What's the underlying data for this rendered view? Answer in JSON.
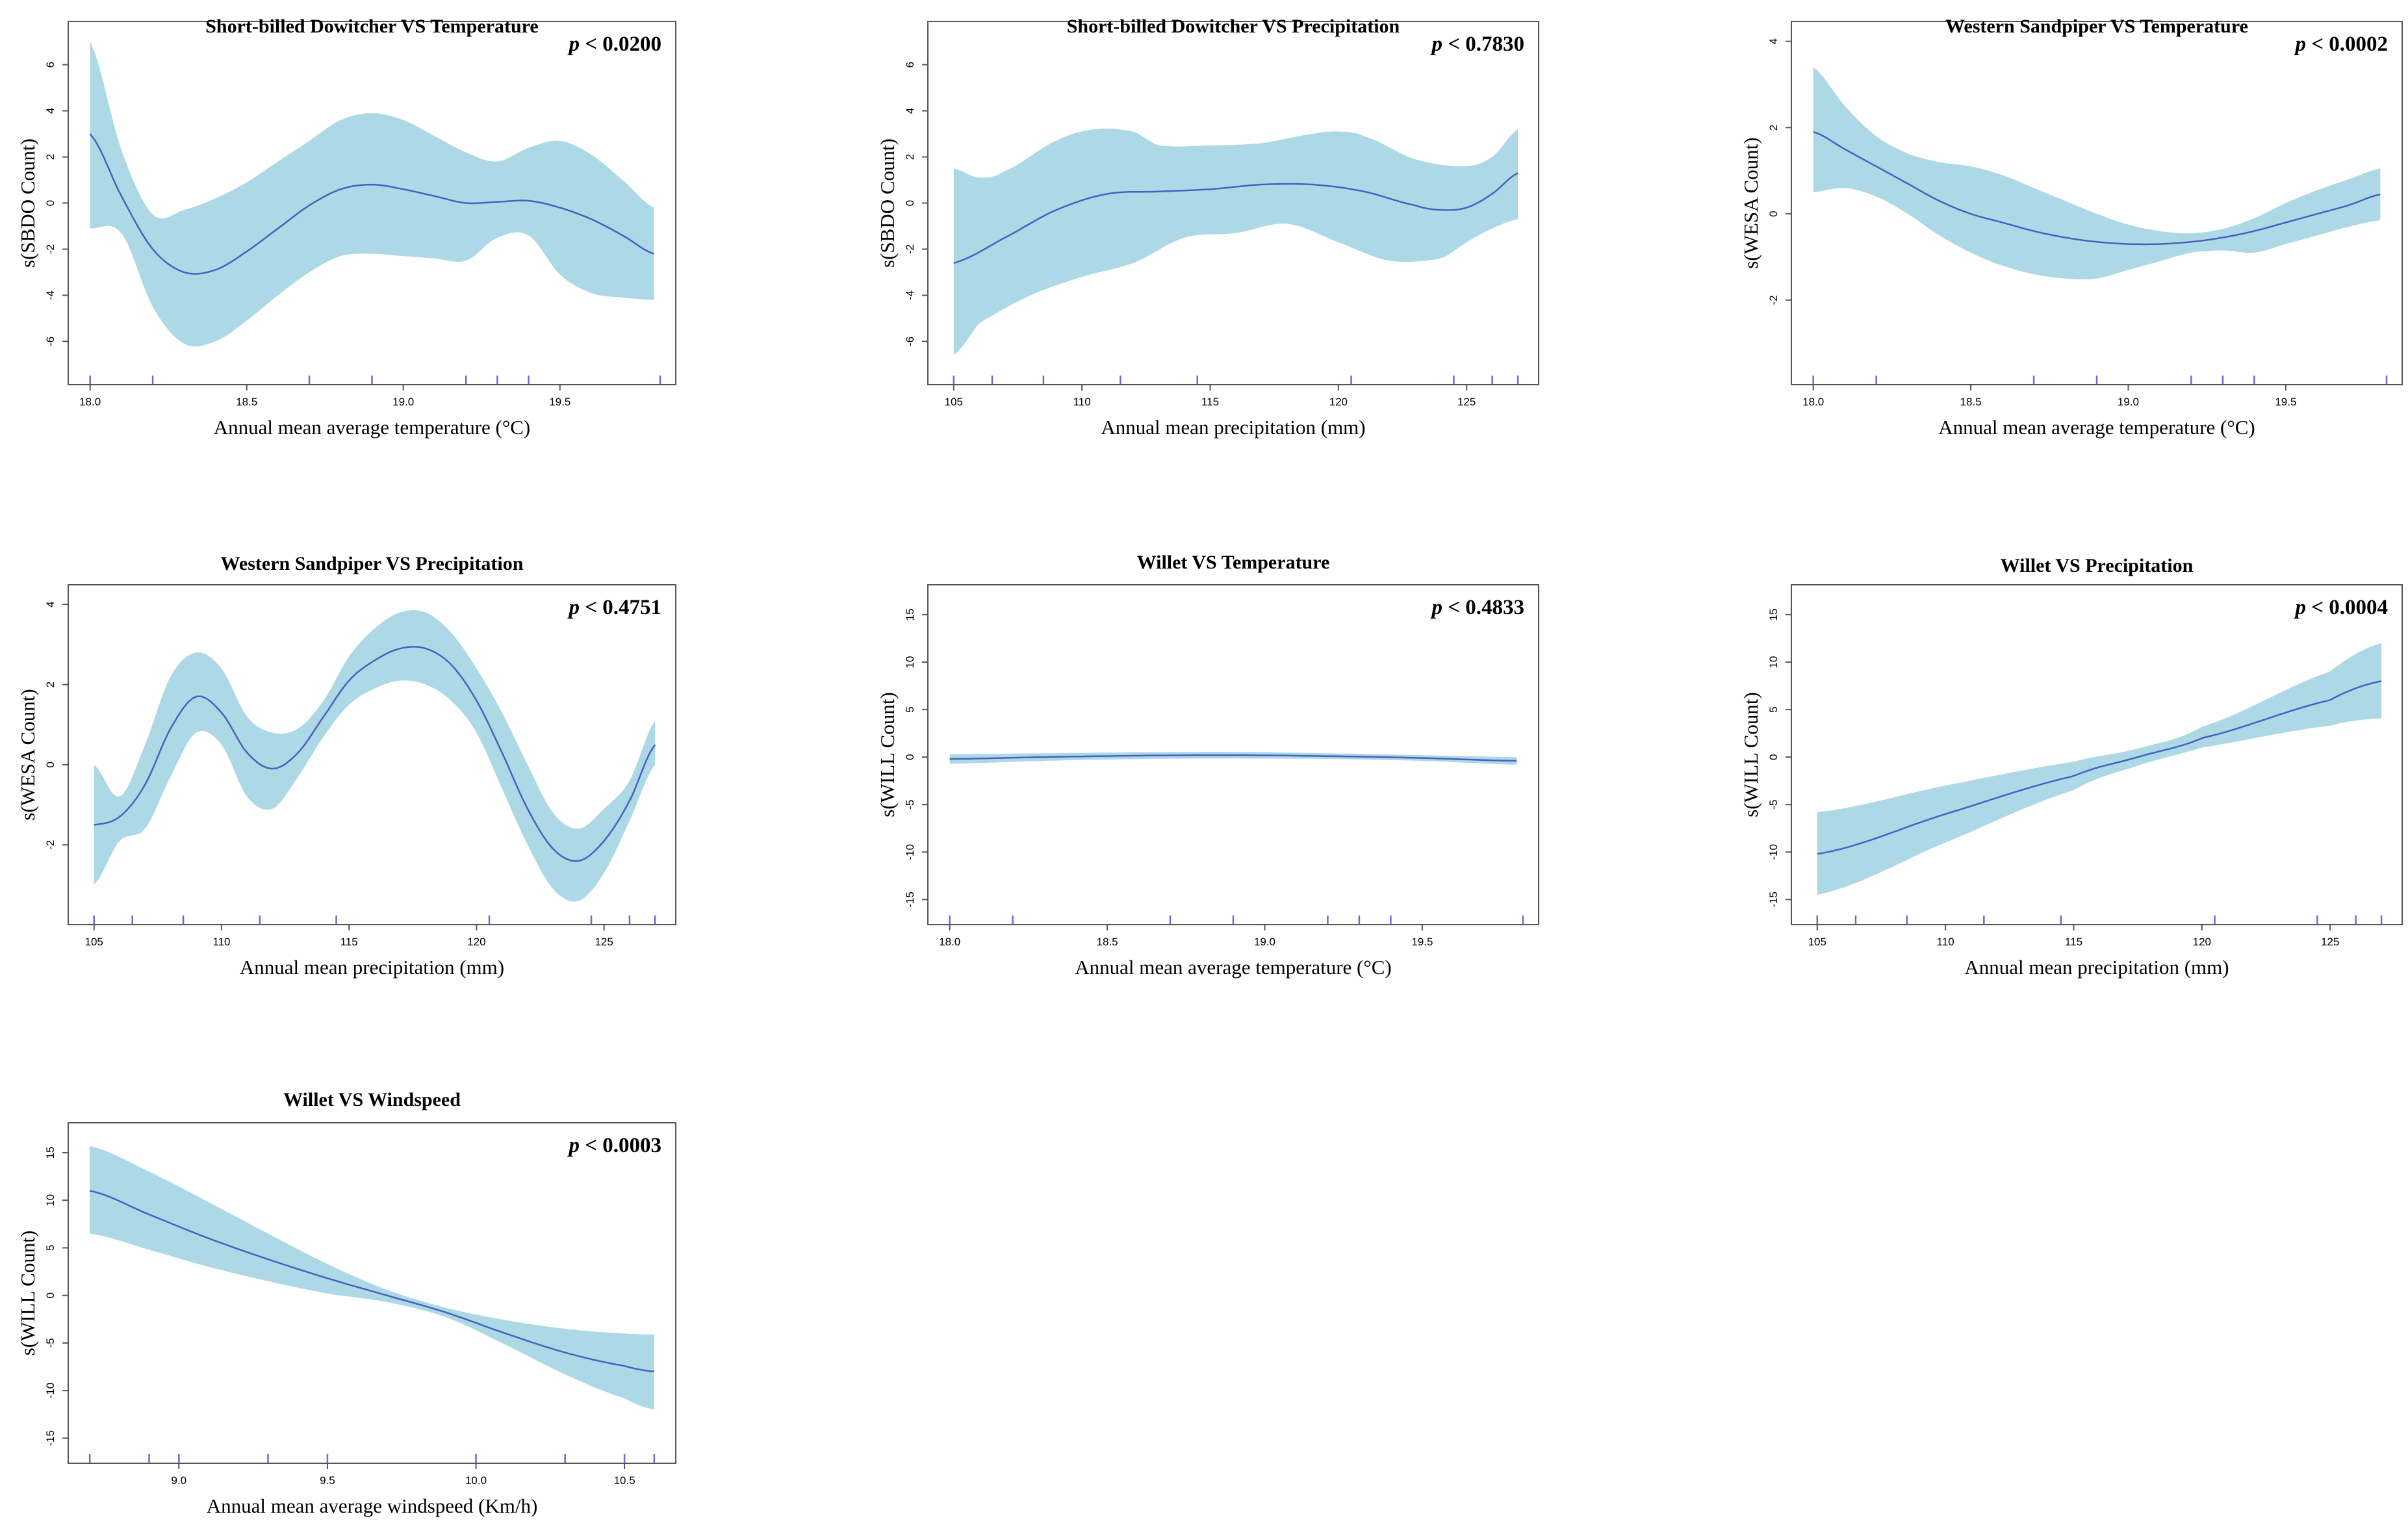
{
  "chart_data": [
    {
      "type": "line",
      "title": "Short-billed Dowitcher VS Temperature",
      "p_value": "p < 0.0200",
      "xlabel": "Annual mean average temperature (°C)",
      "ylabel": "s(SBDO Count)",
      "xlim": [
        17.98,
        19.82
      ],
      "ylim": [
        -7.2,
        7.2
      ],
      "xticks": [
        18.0,
        18.5,
        19.0,
        19.5
      ],
      "xtick_labels": [
        "18.0",
        "18.5",
        "19.0",
        "19.5"
      ],
      "yticks": [
        -6,
        -4,
        -2,
        0,
        2,
        4,
        6
      ],
      "ytick_labels": [
        "-6",
        "-4",
        "-2",
        "0",
        "2",
        "4",
        "6"
      ],
      "series": [
        {
          "name": "fit",
          "x": [
            18.0,
            18.1,
            18.2,
            18.3,
            18.4,
            18.5,
            18.6,
            18.7,
            18.8,
            18.9,
            19.0,
            19.1,
            19.2,
            19.3,
            19.4,
            19.5,
            19.6,
            19.7,
            19.8
          ],
          "values": [
            3.0,
            0.3,
            -2.0,
            -3.0,
            -2.9,
            -2.1,
            -1.1,
            -0.1,
            0.6,
            0.8,
            0.6,
            0.3,
            0.0,
            0.05,
            0.1,
            -0.2,
            -0.7,
            -1.4,
            -2.2
          ]
        },
        {
          "name": "upper",
          "x": [
            18.0,
            18.1,
            18.2,
            18.3,
            18.4,
            18.5,
            18.6,
            18.7,
            18.8,
            18.9,
            19.0,
            19.1,
            19.2,
            19.3,
            19.4,
            19.5,
            19.6,
            19.7,
            19.8
          ],
          "values": [
            7.0,
            2.3,
            -0.5,
            -0.3,
            0.2,
            0.9,
            1.8,
            2.7,
            3.6,
            3.9,
            3.6,
            2.9,
            2.2,
            1.8,
            2.4,
            2.7,
            2.1,
            1.0,
            -0.2
          ]
        },
        {
          "name": "lower",
          "x": [
            18.0,
            18.1,
            18.2,
            18.3,
            18.4,
            18.5,
            18.6,
            18.7,
            18.8,
            18.9,
            19.0,
            19.1,
            19.2,
            19.3,
            19.4,
            19.5,
            19.6,
            19.7,
            19.8
          ],
          "values": [
            -1.1,
            -1.3,
            -4.5,
            -6.1,
            -6.0,
            -5.1,
            -4.0,
            -3.0,
            -2.3,
            -2.2,
            -2.3,
            -2.4,
            -2.5,
            -1.5,
            -1.4,
            -3.1,
            -3.9,
            -4.1,
            -4.2
          ]
        }
      ],
      "rug": [
        18.0,
        18.2,
        18.7,
        18.9,
        19.2,
        19.3,
        19.4,
        19.82
      ]
    },
    {
      "type": "line",
      "title": "Short-billed Dowitcher VS Precipitation",
      "p_value": "p < 0.7830",
      "xlabel": "Annual mean precipitation (mm)",
      "ylabel": "s(SBDO Count)",
      "xlim": [
        104.6,
        127.2
      ],
      "ylim": [
        -7.2,
        7.2
      ],
      "xticks": [
        105,
        110,
        115,
        120,
        125
      ],
      "xtick_labels": [
        "105",
        "110",
        "115",
        "120",
        "125"
      ],
      "yticks": [
        -6,
        -4,
        -2,
        0,
        2,
        4,
        6
      ],
      "ytick_labels": [
        "-6",
        "-4",
        "-2",
        "0",
        "2",
        "4",
        "6"
      ],
      "series": [
        {
          "name": "fit",
          "x": [
            105,
            107,
            109,
            111,
            113,
            115,
            117,
            119,
            121,
            123,
            124,
            125,
            126,
            127
          ],
          "values": [
            -2.6,
            -1.5,
            -0.3,
            0.4,
            0.5,
            0.6,
            0.8,
            0.8,
            0.5,
            -0.1,
            -0.3,
            -0.2,
            0.4,
            1.3
          ]
        },
        {
          "name": "upper",
          "x": [
            105,
            106,
            107,
            109,
            110.5,
            112,
            113,
            115,
            117,
            119,
            120,
            121,
            123,
            125,
            126,
            127
          ],
          "values": [
            1.5,
            1.1,
            1.4,
            2.7,
            3.2,
            3.1,
            2.5,
            2.5,
            2.6,
            3.0,
            3.1,
            2.9,
            1.9,
            1.6,
            2.0,
            3.2
          ]
        },
        {
          "name": "lower",
          "x": [
            105,
            106,
            108,
            110,
            112,
            114,
            116,
            118,
            120,
            122,
            124,
            125,
            126,
            127
          ],
          "values": [
            -6.6,
            -5.2,
            -4.0,
            -3.2,
            -2.6,
            -1.5,
            -1.3,
            -0.9,
            -1.7,
            -2.5,
            -2.4,
            -1.7,
            -1.1,
            -0.7
          ]
        }
      ],
      "rug": [
        105,
        106.5,
        108.5,
        111.5,
        114.5,
        120.5,
        124.5,
        126,
        127
      ]
    },
    {
      "type": "line",
      "title": "Western Sandpiper VS Temperature",
      "p_value": "p < 0.0002",
      "xlabel": "Annual mean average temperature (°C)",
      "ylabel": "s(WESA Count)",
      "xlim": [
        17.98,
        19.82
      ],
      "ylim": [
        -3.6,
        4.1
      ],
      "xticks": [
        18.0,
        18.5,
        19.0,
        19.5
      ],
      "xtick_labels": [
        "18.0",
        "18.5",
        "19.0",
        "19.5"
      ],
      "yticks": [
        -2,
        0,
        2,
        4
      ],
      "ytick_labels": [
        "-2",
        "0",
        "2",
        "4"
      ],
      "series": [
        {
          "name": "fit",
          "x": [
            18.0,
            18.1,
            18.2,
            18.3,
            18.4,
            18.5,
            18.6,
            18.7,
            18.8,
            18.9,
            19.0,
            19.1,
            19.2,
            19.3,
            19.4,
            19.5,
            19.6,
            19.7,
            19.8
          ],
          "values": [
            1.9,
            1.5,
            1.1,
            0.7,
            0.3,
            0.0,
            -0.2,
            -0.4,
            -0.55,
            -0.65,
            -0.7,
            -0.7,
            -0.65,
            -0.55,
            -0.4,
            -0.2,
            0.0,
            0.2,
            0.45
          ]
        },
        {
          "name": "upper",
          "x": [
            18.0,
            18.1,
            18.2,
            18.3,
            18.4,
            18.5,
            18.6,
            18.7,
            18.8,
            18.9,
            19.0,
            19.1,
            19.2,
            19.3,
            19.4,
            19.5,
            19.6,
            19.7,
            19.8
          ],
          "values": [
            3.4,
            2.5,
            1.8,
            1.4,
            1.2,
            1.1,
            0.9,
            0.6,
            0.3,
            0.0,
            -0.25,
            -0.4,
            -0.45,
            -0.35,
            -0.1,
            0.25,
            0.55,
            0.8,
            1.05
          ]
        },
        {
          "name": "lower",
          "x": [
            18.0,
            18.1,
            18.2,
            18.3,
            18.4,
            18.5,
            18.6,
            18.7,
            18.8,
            18.9,
            19.0,
            19.1,
            19.2,
            19.3,
            19.4,
            19.5,
            19.6,
            19.7,
            19.8
          ],
          "values": [
            0.5,
            0.6,
            0.4,
            0.0,
            -0.5,
            -0.9,
            -1.2,
            -1.4,
            -1.5,
            -1.5,
            -1.3,
            -1.1,
            -0.9,
            -0.85,
            -0.9,
            -0.7,
            -0.5,
            -0.3,
            -0.15
          ]
        }
      ],
      "rug": [
        18.0,
        18.2,
        18.7,
        18.9,
        19.2,
        19.3,
        19.4,
        19.82
      ]
    },
    {
      "type": "line",
      "title": "Western Sandpiper VS Precipitation",
      "p_value": "p < 0.4751",
      "xlabel": "Annual mean precipitation (mm)",
      "ylabel": "s(WESA Count)",
      "xlim": [
        104.6,
        127.2
      ],
      "ylim": [
        -3.6,
        4.1
      ],
      "xticks": [
        105,
        110,
        115,
        120,
        125
      ],
      "xtick_labels": [
        "105",
        "110",
        "115",
        "120",
        "125"
      ],
      "yticks": [
        -2,
        0,
        2,
        4
      ],
      "ytick_labels": [
        "-2",
        "0",
        "2",
        "4"
      ],
      "series": [
        {
          "name": "fit",
          "x": [
            105,
            106,
            107,
            108,
            109,
            110,
            111,
            112,
            113,
            114,
            115,
            116,
            117,
            118,
            119,
            120,
            121,
            122,
            123,
            124,
            125,
            126,
            127
          ],
          "values": [
            -1.5,
            -1.3,
            -0.5,
            0.9,
            1.7,
            1.3,
            0.3,
            -0.1,
            0.3,
            1.2,
            2.1,
            2.6,
            2.9,
            2.9,
            2.5,
            1.6,
            0.3,
            -1.1,
            -2.1,
            -2.4,
            -1.9,
            -0.9,
            0.5
          ]
        },
        {
          "name": "upper",
          "x": [
            105,
            106,
            107,
            108,
            109,
            110,
            111,
            112,
            113,
            114,
            115,
            116,
            117,
            118,
            119,
            120,
            121,
            122,
            123,
            124,
            125,
            126,
            127
          ],
          "values": [
            0.0,
            -0.8,
            0.5,
            2.2,
            2.8,
            2.4,
            1.2,
            0.8,
            0.9,
            1.6,
            2.7,
            3.4,
            3.8,
            3.8,
            3.3,
            2.4,
            1.3,
            0.0,
            -1.2,
            -1.6,
            -1.1,
            -0.4,
            1.1
          ]
        },
        {
          "name": "lower",
          "x": [
            105,
            106,
            107,
            108,
            109,
            110,
            111,
            112,
            113,
            114,
            115,
            116,
            117,
            118,
            119,
            120,
            121,
            122,
            123,
            124,
            125,
            126,
            127
          ],
          "values": [
            -3.0,
            -1.9,
            -1.6,
            -0.3,
            0.8,
            0.5,
            -0.8,
            -1.1,
            -0.3,
            0.7,
            1.5,
            1.9,
            2.1,
            2.0,
            1.6,
            0.8,
            -0.6,
            -2.0,
            -3.1,
            -3.4,
            -2.7,
            -1.4,
            0.0
          ]
        }
      ],
      "rug": [
        105,
        106.5,
        108.5,
        111.5,
        114.5,
        120.5,
        124.5,
        126,
        127
      ]
    },
    {
      "type": "line",
      "title": "Willet VS Temperature",
      "p_value": "p < 0.4833",
      "xlabel": "Annual mean average temperature (°C)",
      "ylabel": "s(WILL Count)",
      "xlim": [
        17.98,
        19.82
      ],
      "ylim": [
        -16,
        16.5
      ],
      "xticks": [
        18.0,
        18.5,
        19.0,
        19.5
      ],
      "xtick_labels": [
        "18.0",
        "18.5",
        "19.0",
        "19.5"
      ],
      "yticks": [
        -15,
        -10,
        -5,
        0,
        5,
        10,
        15
      ],
      "ytick_labels": [
        "-15",
        "-10",
        "-5",
        "0",
        "5",
        "10",
        "15"
      ],
      "series": [
        {
          "name": "fit",
          "x": [
            18.0,
            18.3,
            18.6,
            18.9,
            19.2,
            19.5,
            19.8
          ],
          "values": [
            -0.2,
            0.0,
            0.15,
            0.2,
            0.1,
            -0.1,
            -0.4
          ]
        },
        {
          "name": "upper",
          "x": [
            18.0,
            18.3,
            18.6,
            18.9,
            19.2,
            19.5,
            19.8
          ],
          "values": [
            0.3,
            0.4,
            0.5,
            0.55,
            0.4,
            0.2,
            0.0
          ]
        },
        {
          "name": "lower",
          "x": [
            18.0,
            18.3,
            18.6,
            18.9,
            19.2,
            19.5,
            19.8
          ],
          "values": [
            -0.7,
            -0.4,
            -0.2,
            -0.15,
            -0.2,
            -0.4,
            -0.8
          ]
        }
      ],
      "rug": [
        18.0,
        18.2,
        18.7,
        18.9,
        19.2,
        19.3,
        19.4,
        19.82
      ]
    },
    {
      "type": "line",
      "title": "Willet VS Precipitation",
      "p_value": "p < 0.0004",
      "xlabel": "Annual mean precipitation (mm)",
      "ylabel": "s(WILL Count)",
      "xlim": [
        104.6,
        127.2
      ],
      "ylim": [
        -16,
        16.5
      ],
      "xticks": [
        105,
        110,
        115,
        120,
        125
      ],
      "xtick_labels": [
        "105",
        "110",
        "115",
        "120",
        "125"
      ],
      "yticks": [
        -15,
        -10,
        -5,
        0,
        5,
        10,
        15
      ],
      "ytick_labels": [
        "-15",
        "-10",
        "-5",
        "0",
        "5",
        "10",
        "15"
      ],
      "series": [
        {
          "name": "fit",
          "x": [
            105,
            110,
            115,
            117.5,
            120,
            125,
            127
          ],
          "values": [
            -10.2,
            -6.0,
            -2.0,
            0.0,
            2.0,
            6.0,
            8.0
          ]
        },
        {
          "name": "upper",
          "x": [
            105,
            110,
            115,
            117.5,
            120,
            125,
            127
          ],
          "values": [
            -5.8,
            -3.0,
            -0.5,
            0.9,
            3.2,
            9.0,
            12.0
          ]
        },
        {
          "name": "lower",
          "x": [
            105,
            110,
            115,
            117.5,
            120,
            125,
            127
          ],
          "values": [
            -14.5,
            -9.0,
            -3.5,
            -0.9,
            1.0,
            3.3,
            4.1
          ]
        }
      ],
      "rug": [
        105,
        106.5,
        108.5,
        111.5,
        114.5,
        120.5,
        124.5,
        126,
        127
      ]
    },
    {
      "type": "line",
      "title": "Willet VS Windspeed",
      "p_value": "p < 0.0003",
      "xlabel": "Annual mean average windspeed (Km/h)",
      "ylabel": "s(WILL Count)",
      "xlim": [
        8.68,
        10.62
      ],
      "ylim": [
        -16,
        16.5
      ],
      "xticks": [
        9.0,
        9.5,
        10.0,
        10.5
      ],
      "xtick_labels": [
        "9.0",
        "9.5",
        "10.0",
        "10.5"
      ],
      "yticks": [
        -15,
        -10,
        -5,
        0,
        5,
        10,
        15
      ],
      "ytick_labels": [
        "-15",
        "-10",
        "-5",
        "0",
        "5",
        "10",
        "15"
      ],
      "series": [
        {
          "name": "fit",
          "x": [
            8.7,
            8.9,
            9.1,
            9.3,
            9.5,
            9.7,
            9.9,
            10.1,
            10.3,
            10.5,
            10.6
          ],
          "values": [
            11.0,
            8.5,
            6.0,
            3.8,
            1.8,
            0.0,
            -1.8,
            -4.0,
            -6.0,
            -7.4,
            -8.0
          ]
        },
        {
          "name": "upper",
          "x": [
            8.7,
            8.9,
            9.1,
            9.3,
            9.5,
            9.7,
            9.9,
            10.1,
            10.3,
            10.5,
            10.6
          ],
          "values": [
            15.7,
            13.0,
            9.8,
            6.5,
            3.3,
            0.6,
            -1.3,
            -2.6,
            -3.5,
            -4.0,
            -4.1
          ]
        },
        {
          "name": "lower",
          "x": [
            8.7,
            8.9,
            9.1,
            9.3,
            9.5,
            9.7,
            9.9,
            10.1,
            10.3,
            10.5,
            10.6
          ],
          "values": [
            6.5,
            4.8,
            3.0,
            1.5,
            0.2,
            -0.7,
            -2.3,
            -5.2,
            -8.3,
            -10.8,
            -12.0
          ]
        }
      ],
      "rug": [
        8.7,
        8.9,
        9.0,
        9.3,
        9.5,
        10.0,
        10.3,
        10.5,
        10.6
      ]
    }
  ]
}
